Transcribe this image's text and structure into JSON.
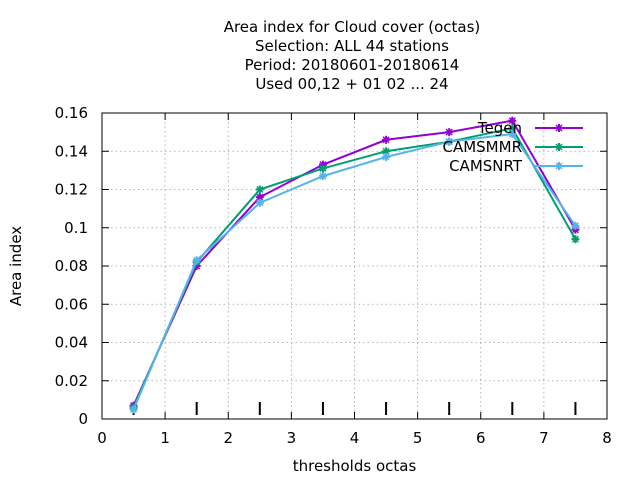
{
  "chart_data": {
    "type": "line",
    "title_lines": [
      "Area index  for Cloud cover (octas)",
      "Selection: ALL     44 stations",
      "Period: 20180601-20180614",
      "Used  00,12  + 01 02 ... 24"
    ],
    "xlabel": "thresholds octas",
    "ylabel": "Area index",
    "xlim": [
      0,
      8
    ],
    "ylim": [
      0,
      0.16
    ],
    "x_ticks": [
      "0",
      "1",
      "2",
      "3",
      "4",
      "5",
      "6",
      "7",
      "8"
    ],
    "y_ticks": [
      "0",
      "0.02",
      "0.04",
      "0.06",
      "0.08",
      "0.1",
      "0.12",
      "0.14",
      "0.16"
    ],
    "grid": true,
    "legend_position": "top-right",
    "x": [
      0.5,
      1.5,
      2.5,
      3.5,
      4.5,
      5.5,
      6.5,
      7.5
    ],
    "series": [
      {
        "name": "Tegen",
        "color": "#9400d3",
        "values": [
          0.007,
          0.08,
          0.116,
          0.133,
          0.146,
          0.15,
          0.156,
          0.099
        ]
      },
      {
        "name": "CAMSMMR",
        "color": "#009e73",
        "values": [
          0.006,
          0.082,
          0.12,
          0.131,
          0.14,
          0.145,
          0.152,
          0.094
        ]
      },
      {
        "name": "CAMSNRT",
        "color": "#56b4e9",
        "values": [
          0.005,
          0.083,
          0.113,
          0.127,
          0.137,
          0.145,
          0.149,
          0.101
        ]
      }
    ]
  }
}
